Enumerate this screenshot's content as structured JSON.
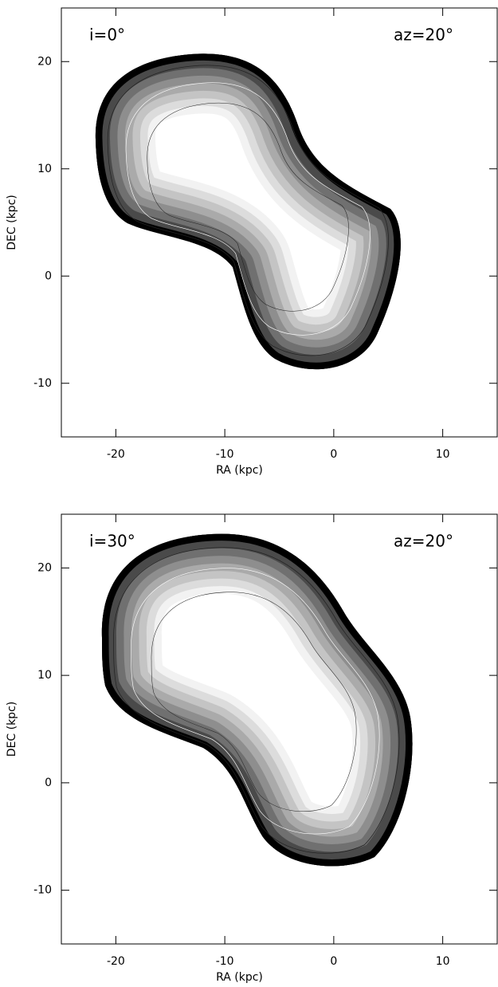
{
  "chart_data": [
    {
      "type": "contour",
      "xlabel": "RA (kpc)",
      "ylabel": "DEC (kpc)",
      "xlim": [
        -25,
        15
      ],
      "ylim": [
        -15,
        25
      ],
      "xticks": [
        -20,
        -10,
        0,
        10
      ],
      "yticks": [
        -10,
        0,
        10,
        20
      ],
      "annotations": [
        "i=0°",
        "az=20°"
      ]
    },
    {
      "type": "contour",
      "xlabel": "RA (kpc)",
      "ylabel": "DEC (kpc)",
      "xlim": [
        -25,
        15
      ],
      "ylim": [
        -15,
        25
      ],
      "xticks": [
        -20,
        -10,
        0,
        10
      ],
      "yticks": [
        -10,
        0,
        10,
        20
      ],
      "annotations": [
        "i=30°",
        "az=20°"
      ]
    }
  ]
}
